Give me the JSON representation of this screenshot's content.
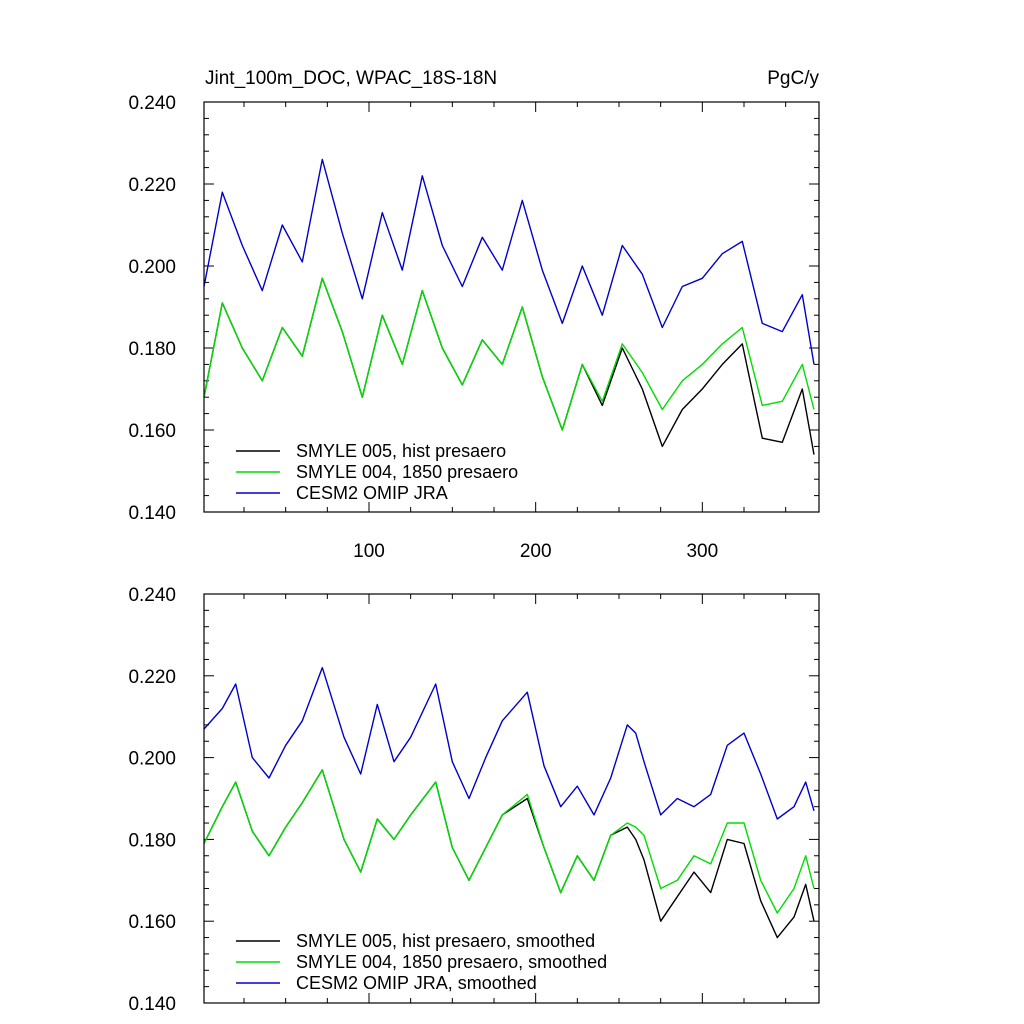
{
  "chart_data": [
    {
      "type": "line",
      "title": "Jint_100m_DOC, WPAC_18S-18N",
      "units": "PgC/y",
      "xlim": [
        1,
        370
      ],
      "ylim": [
        0.14,
        0.24
      ],
      "xticks": [
        100,
        200,
        300
      ],
      "xtick_labels": [
        "100",
        "200",
        "300"
      ],
      "yticks": [
        0.14,
        0.16,
        0.18,
        0.2,
        0.22,
        0.24
      ],
      "ytick_labels": [
        "0.140",
        "0.160",
        "0.180",
        "0.200",
        "0.220",
        "0.240"
      ],
      "legend_position": "bottom-left",
      "series": [
        {
          "name": "SMYLE 005, hist presaero",
          "color": "#000000",
          "x": [
            1,
            12,
            24,
            36,
            48,
            60,
            72,
            84,
            96,
            108,
            120,
            132,
            144,
            156,
            168,
            180,
            192,
            204,
            216,
            228,
            240,
            252,
            264,
            276,
            288,
            300,
            312,
            324,
            336,
            348,
            360,
            367
          ],
          "y": [
            0.168,
            0.191,
            0.18,
            0.172,
            0.185,
            0.178,
            0.197,
            0.184,
            0.168,
            0.188,
            0.176,
            0.194,
            0.18,
            0.171,
            0.182,
            0.176,
            0.19,
            0.173,
            0.16,
            0.176,
            0.166,
            0.18,
            0.17,
            0.156,
            0.165,
            0.17,
            0.176,
            0.181,
            0.158,
            0.157,
            0.17,
            0.154
          ]
        },
        {
          "name": "SMYLE 004, 1850 presaero",
          "color": "#00dd00",
          "x": [
            1,
            12,
            24,
            36,
            48,
            60,
            72,
            84,
            96,
            108,
            120,
            132,
            144,
            156,
            168,
            180,
            192,
            204,
            216,
            228,
            240,
            252,
            264,
            276,
            288,
            300,
            312,
            324,
            336,
            348,
            360,
            367
          ],
          "y": [
            0.168,
            0.191,
            0.18,
            0.172,
            0.185,
            0.178,
            0.197,
            0.184,
            0.168,
            0.188,
            0.176,
            0.194,
            0.18,
            0.171,
            0.182,
            0.176,
            0.19,
            0.173,
            0.16,
            0.176,
            0.167,
            0.181,
            0.174,
            0.165,
            0.172,
            0.176,
            0.181,
            0.185,
            0.166,
            0.167,
            0.176,
            0.165
          ]
        },
        {
          "name": "CESM2 OMIP JRA",
          "color": "#0000cc",
          "x": [
            1,
            12,
            24,
            36,
            48,
            60,
            72,
            84,
            96,
            108,
            120,
            132,
            144,
            156,
            168,
            180,
            192,
            204,
            216,
            228,
            240,
            252,
            264,
            276,
            288,
            300,
            312,
            324,
            336,
            348,
            360,
            367
          ],
          "y": [
            0.195,
            0.218,
            0.205,
            0.194,
            0.21,
            0.201,
            0.226,
            0.208,
            0.192,
            0.213,
            0.199,
            0.222,
            0.205,
            0.195,
            0.207,
            0.199,
            0.216,
            0.199,
            0.186,
            0.2,
            0.188,
            0.205,
            0.198,
            0.185,
            0.195,
            0.197,
            0.203,
            0.206,
            0.186,
            0.184,
            0.193,
            0.176
          ]
        }
      ]
    },
    {
      "type": "line",
      "xlim": [
        1,
        370
      ],
      "ylim": [
        0.14,
        0.24
      ],
      "xticks": [
        100,
        200,
        300
      ],
      "yticks": [
        0.14,
        0.16,
        0.18,
        0.2,
        0.22,
        0.24
      ],
      "ytick_labels": [
        "0.140",
        "0.160",
        "0.180",
        "0.200",
        "0.220",
        "0.240"
      ],
      "legend_position": "bottom-left",
      "series": [
        {
          "name": "SMYLE 005, hist presaero, smoothed",
          "color": "#000000",
          "x": [
            1,
            12,
            20,
            30,
            40,
            50,
            60,
            72,
            85,
            95,
            105,
            115,
            125,
            140,
            150,
            160,
            170,
            180,
            195,
            205,
            215,
            225,
            235,
            245,
            255,
            260,
            265,
            275,
            285,
            295,
            305,
            315,
            325,
            335,
            345,
            355,
            362,
            367
          ],
          "y": [
            0.179,
            0.188,
            0.194,
            0.182,
            0.176,
            0.183,
            0.189,
            0.197,
            0.18,
            0.172,
            0.185,
            0.18,
            0.186,
            0.194,
            0.178,
            0.17,
            0.178,
            0.186,
            0.19,
            0.178,
            0.167,
            0.176,
            0.17,
            0.181,
            0.183,
            0.18,
            0.175,
            0.16,
            0.166,
            0.172,
            0.167,
            0.18,
            0.179,
            0.165,
            0.156,
            0.161,
            0.169,
            0.16
          ]
        },
        {
          "name": "SMYLE 004, 1850 presaero, smoothed",
          "color": "#00dd00",
          "x": [
            1,
            12,
            20,
            30,
            40,
            50,
            60,
            72,
            85,
            95,
            105,
            115,
            125,
            140,
            150,
            160,
            170,
            180,
            195,
            205,
            215,
            225,
            235,
            245,
            255,
            260,
            265,
            275,
            285,
            295,
            305,
            315,
            325,
            335,
            345,
            355,
            362,
            367
          ],
          "y": [
            0.179,
            0.188,
            0.194,
            0.182,
            0.176,
            0.183,
            0.189,
            0.197,
            0.18,
            0.172,
            0.185,
            0.18,
            0.186,
            0.194,
            0.178,
            0.17,
            0.178,
            0.186,
            0.191,
            0.178,
            0.167,
            0.176,
            0.17,
            0.181,
            0.184,
            0.183,
            0.181,
            0.168,
            0.17,
            0.176,
            0.174,
            0.184,
            0.184,
            0.17,
            0.162,
            0.168,
            0.176,
            0.168
          ]
        },
        {
          "name": "CESM2 OMIP JRA, smoothed",
          "color": "#0000cc",
          "x": [
            1,
            12,
            20,
            30,
            40,
            50,
            60,
            72,
            85,
            95,
            105,
            115,
            125,
            140,
            150,
            160,
            170,
            180,
            195,
            205,
            215,
            225,
            235,
            245,
            255,
            260,
            265,
            275,
            285,
            295,
            305,
            315,
            325,
            335,
            345,
            355,
            362,
            367
          ],
          "y": [
            0.207,
            0.212,
            0.218,
            0.2,
            0.195,
            0.203,
            0.209,
            0.222,
            0.205,
            0.196,
            0.213,
            0.199,
            0.205,
            0.218,
            0.199,
            0.19,
            0.2,
            0.209,
            0.216,
            0.198,
            0.188,
            0.193,
            0.186,
            0.195,
            0.208,
            0.206,
            0.199,
            0.186,
            0.19,
            0.188,
            0.191,
            0.203,
            0.206,
            0.196,
            0.185,
            0.188,
            0.194,
            0.187
          ]
        }
      ]
    }
  ]
}
